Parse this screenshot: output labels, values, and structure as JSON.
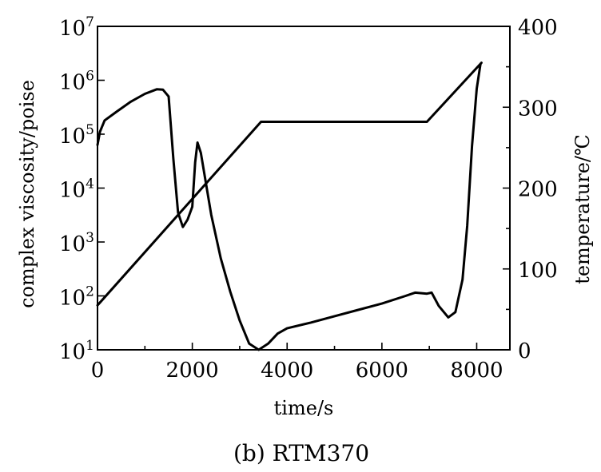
{
  "chart_data": {
    "type": "line",
    "caption": "(b)  RTM370",
    "xlabel": "time/s",
    "ylabel_left": "complex viscosity/poise",
    "ylabel_right": "temperature/℃",
    "xlim": [
      0,
      8700
    ],
    "x_ticks": [
      0,
      2000,
      4000,
      6000,
      8000
    ],
    "x_tick_labels": [
      "0",
      "2000",
      "4000",
      "6000",
      "8000"
    ],
    "y_left_scale": "log",
    "y_left_lim": [
      10,
      10000000
    ],
    "y_left_ticks": [
      {
        "base": "10",
        "exp": "1",
        "value": 10
      },
      {
        "base": "10",
        "exp": "2",
        "value": 100
      },
      {
        "base": "10",
        "exp": "3",
        "value": 1000
      },
      {
        "base": "10",
        "exp": "4",
        "value": 10000
      },
      {
        "base": "10",
        "exp": "5",
        "value": 100000
      },
      {
        "base": "10",
        "exp": "6",
        "value": 1000000
      },
      {
        "base": "10",
        "exp": "7",
        "value": 10000000
      }
    ],
    "y_right_lim": [
      0,
      400
    ],
    "y_right_ticks": [
      "0",
      "100",
      "200",
      "300",
      "400"
    ],
    "grid": false,
    "series": [
      {
        "axis": "left",
        "points": [
          [
            0,
            63000
          ],
          [
            50,
            110000
          ],
          [
            150,
            180000
          ],
          [
            400,
            260000
          ],
          [
            700,
            400000
          ],
          [
            1000,
            560000
          ],
          [
            1250,
            680000
          ],
          [
            1380,
            670000
          ],
          [
            1500,
            500000
          ],
          [
            1600,
            35000
          ],
          [
            1700,
            3500
          ],
          [
            1800,
            1900
          ],
          [
            1900,
            2600
          ],
          [
            2000,
            4500
          ],
          [
            2060,
            30000
          ],
          [
            2110,
            70000
          ],
          [
            2180,
            45000
          ],
          [
            2400,
            3200
          ],
          [
            2600,
            500
          ],
          [
            2800,
            120
          ],
          [
            3000,
            35
          ],
          [
            3200,
            13
          ],
          [
            3400,
            10
          ],
          [
            3600,
            13
          ],
          [
            3800,
            20
          ],
          [
            4000,
            25
          ],
          [
            4500,
            32
          ],
          [
            5000,
            42
          ],
          [
            5500,
            55
          ],
          [
            6000,
            72
          ],
          [
            6500,
            100
          ],
          [
            6700,
            115
          ],
          [
            6950,
            110
          ],
          [
            7050,
            115
          ],
          [
            7200,
            65
          ],
          [
            7400,
            40
          ],
          [
            7550,
            50
          ],
          [
            7700,
            200
          ],
          [
            7800,
            2000
          ],
          [
            7900,
            60000
          ],
          [
            8000,
            700000
          ],
          [
            8080,
            2000000
          ]
        ]
      },
      {
        "axis": "right",
        "points": [
          [
            0,
            55
          ],
          [
            3450,
            282
          ],
          [
            6950,
            282
          ],
          [
            8100,
            355
          ]
        ]
      }
    ]
  }
}
